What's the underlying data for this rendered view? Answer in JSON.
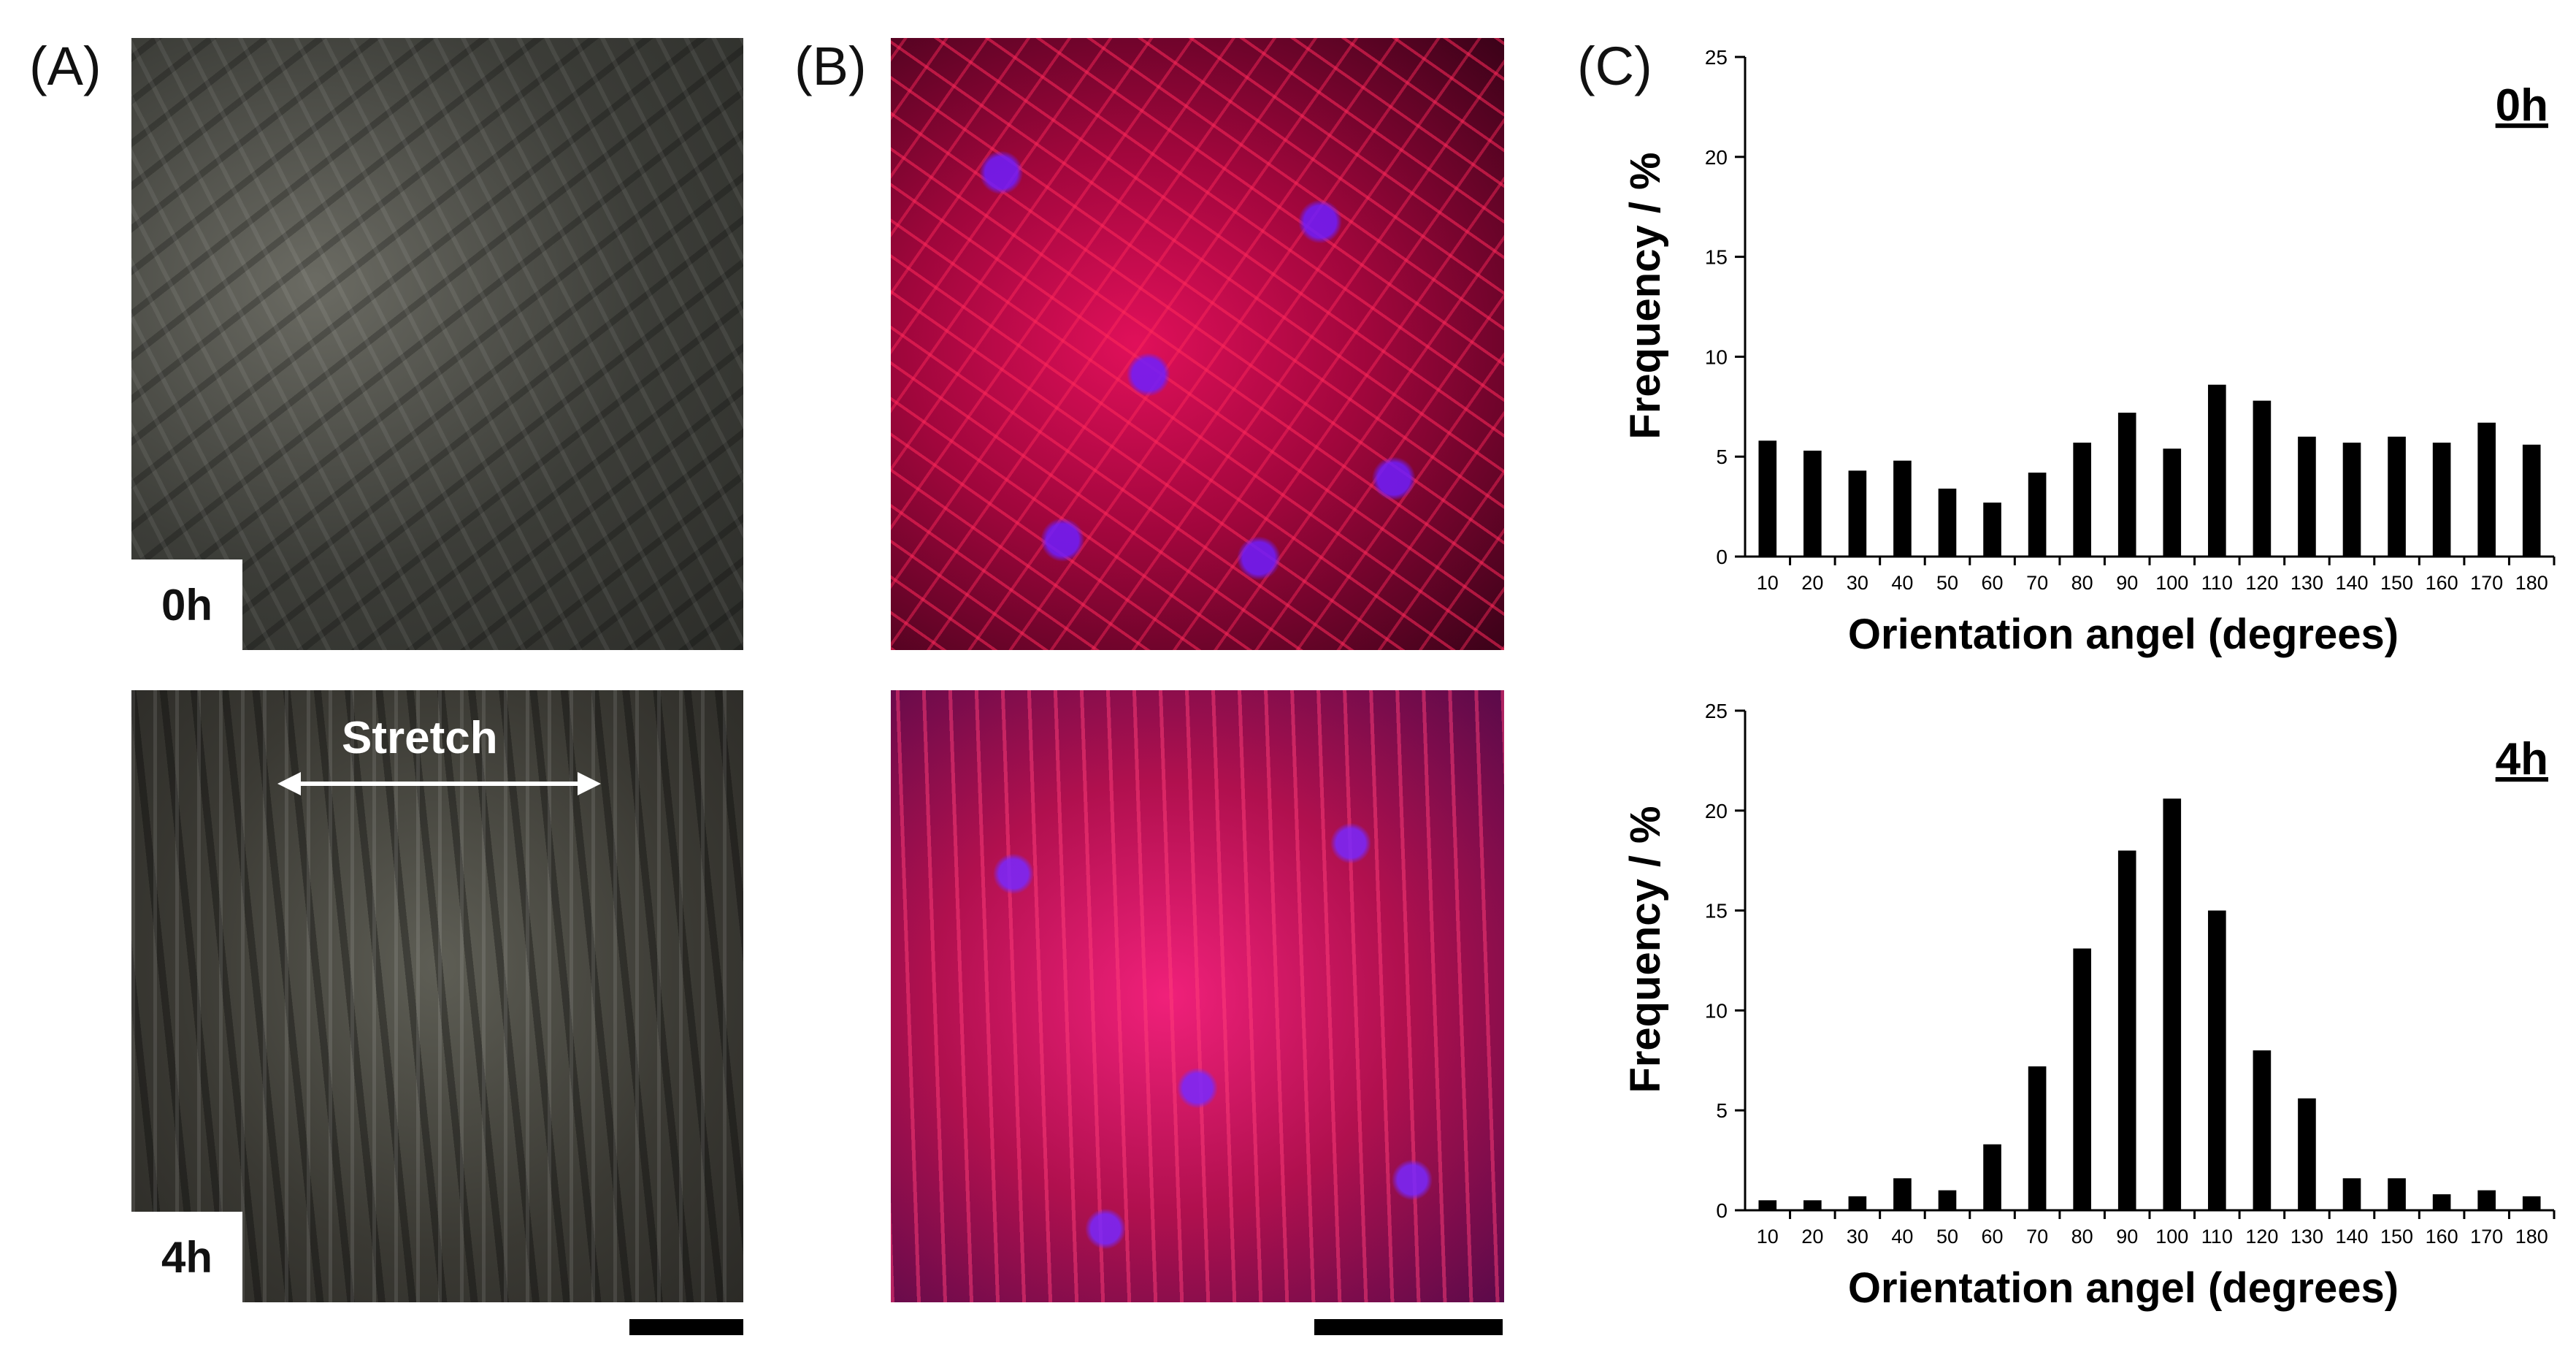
{
  "panels": {
    "a": {
      "label": "(A)",
      "tag_top": "0h",
      "tag_bottom": "4h",
      "annotation": "Stretch"
    },
    "b": {
      "label": "(B)"
    },
    "c": {
      "label": "(C)"
    }
  },
  "chart_data": [
    {
      "type": "bar",
      "title": "0h",
      "xlabel": "Orientation angel (degrees)",
      "ylabel": "Frequency / %",
      "ylim": [
        0,
        25
      ],
      "yticks": [
        0,
        5,
        10,
        15,
        20,
        25
      ],
      "grid": false,
      "color": "#000000",
      "categories": [
        "10",
        "20",
        "30",
        "40",
        "50",
        "60",
        "70",
        "80",
        "90",
        "100",
        "110",
        "120",
        "130",
        "140",
        "150",
        "160",
        "170",
        "180"
      ],
      "values": [
        5.8,
        5.3,
        4.3,
        4.8,
        3.4,
        2.7,
        4.2,
        5.7,
        7.2,
        5.4,
        8.6,
        7.8,
        6.0,
        5.7,
        6.0,
        5.7,
        6.7,
        5.6
      ]
    },
    {
      "type": "bar",
      "title": "4h",
      "xlabel": "Orientation angel (degrees)",
      "ylabel": "Frequency / %",
      "ylim": [
        0,
        25
      ],
      "yticks": [
        0,
        5,
        10,
        15,
        20,
        25
      ],
      "grid": false,
      "color": "#000000",
      "categories": [
        "10",
        "20",
        "30",
        "40",
        "50",
        "60",
        "70",
        "80",
        "90",
        "100",
        "110",
        "120",
        "130",
        "140",
        "150",
        "160",
        "170",
        "180"
      ],
      "values": [
        0.5,
        0.5,
        0.7,
        1.6,
        1.0,
        3.3,
        7.2,
        13.1,
        18.0,
        20.6,
        15.0,
        8.0,
        5.6,
        1.6,
        1.6,
        0.8,
        1.0,
        0.7
      ]
    }
  ]
}
